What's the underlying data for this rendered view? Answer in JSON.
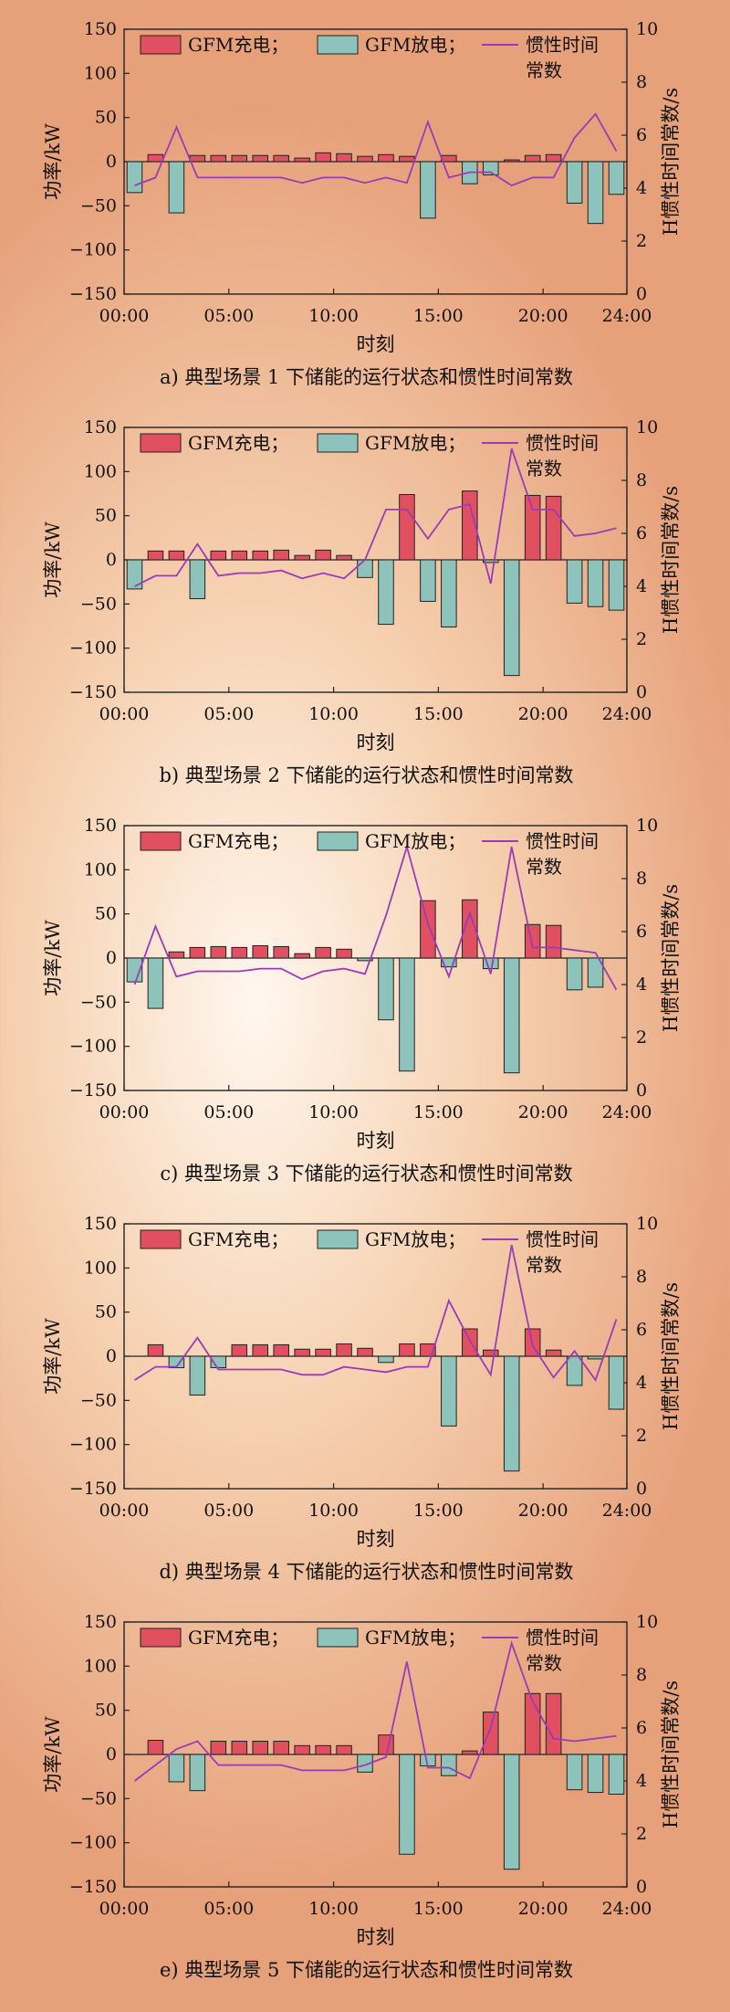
{
  "figure": {
    "legend": {
      "charge": "GFM充电；",
      "discharge": "GFM放电；",
      "inertia_line1": "惯性时间",
      "inertia_line2": "常数"
    },
    "xlabel": "时刻",
    "ylabel_left": "功率/kW",
    "ylabel_right": "H惯性时间常数/s",
    "colors": {
      "charge": "#e05060",
      "discharge": "#8ec3bb",
      "inertia": "#9a3bb8",
      "axis": "#222222"
    }
  },
  "chart_data": [
    {
      "type": "bar",
      "caption": "a) 典型场景 1 下储能的运行状态和惯性时间常数",
      "xlabel": "时刻",
      "ylabel": "功率/kW",
      "y2label": "H惯性时间常数/s",
      "x_ticks": [
        "00:00",
        "05:00",
        "10:00",
        "15:00",
        "20:00",
        "24:00"
      ],
      "y_ticks": [
        "150",
        "100",
        "50",
        "0",
        "−50",
        "−100",
        "−150"
      ],
      "y2_ticks": [
        "10",
        "8",
        "6",
        "4",
        "2",
        "0"
      ],
      "ylim": [
        -150,
        150
      ],
      "y2lim": [
        0,
        10
      ],
      "xlim": [
        0,
        24
      ],
      "hours": [
        1,
        2,
        3,
        4,
        5,
        6,
        7,
        8,
        9,
        10,
        11,
        12,
        13,
        14,
        15,
        16,
        17,
        18,
        19,
        20,
        21,
        22,
        23,
        24
      ],
      "charge": [
        0,
        8,
        0,
        7,
        7,
        7,
        7,
        7,
        4,
        10,
        9,
        6,
        8,
        6,
        0,
        7,
        0,
        0,
        2,
        7,
        8,
        0,
        0,
        0
      ],
      "discharge": [
        -35,
        0,
        -58,
        0,
        0,
        0,
        0,
        0,
        0,
        0,
        0,
        0,
        0,
        0,
        -64,
        0,
        -25,
        -15,
        0,
        0,
        0,
        -47,
        -70,
        -37
      ],
      "inertia": [
        4.1,
        4.4,
        6.3,
        4.4,
        4.4,
        4.4,
        4.4,
        4.4,
        4.2,
        4.4,
        4.4,
        4.2,
        4.4,
        4.2,
        6.5,
        4.4,
        4.6,
        4.6,
        4.1,
        4.4,
        4.4,
        5.9,
        6.8,
        5.4
      ]
    },
    {
      "type": "bar",
      "caption": "b) 典型场景 2 下储能的运行状态和惯性时间常数",
      "xlabel": "时刻",
      "ylabel": "功率/kW",
      "y2label": "H惯性时间常数/s",
      "x_ticks": [
        "00:00",
        "05:00",
        "10:00",
        "15:00",
        "20:00",
        "24:00"
      ],
      "y_ticks": [
        "150",
        "100",
        "50",
        "0",
        "−50",
        "−100",
        "−150"
      ],
      "y2_ticks": [
        "10",
        "8",
        "6",
        "4",
        "2",
        "0"
      ],
      "ylim": [
        -150,
        150
      ],
      "y2lim": [
        0,
        10
      ],
      "xlim": [
        0,
        24
      ],
      "hours": [
        1,
        2,
        3,
        4,
        5,
        6,
        7,
        8,
        9,
        10,
        11,
        12,
        13,
        14,
        15,
        16,
        17,
        18,
        19,
        20,
        21,
        22,
        23,
        24
      ],
      "charge": [
        0,
        10,
        10,
        0,
        10,
        10,
        10,
        11,
        5,
        11,
        5,
        0,
        0,
        74,
        0,
        0,
        78,
        0,
        0,
        73,
        72,
        0,
        0,
        0
      ],
      "discharge": [
        -33,
        0,
        0,
        -44,
        0,
        0,
        0,
        0,
        0,
        0,
        0,
        -20,
        -73,
        0,
        -47,
        -76,
        0,
        -3,
        -131,
        0,
        0,
        -49,
        -53,
        -57
      ],
      "inertia": [
        4.0,
        4.4,
        4.4,
        5.6,
        4.4,
        4.5,
        4.5,
        4.6,
        4.3,
        4.5,
        4.3,
        5.0,
        6.9,
        6.9,
        5.8,
        6.9,
        7.1,
        4.1,
        9.2,
        6.9,
        6.9,
        5.9,
        6.0,
        6.2
      ]
    },
    {
      "type": "bar",
      "caption": "c) 典型场景 3 下储能的运行状态和惯性时间常数",
      "xlabel": "时刻",
      "ylabel": "功率/kW",
      "y2label": "H惯性时间常数/s",
      "x_ticks": [
        "00:00",
        "05:00",
        "10:00",
        "15:00",
        "20:00",
        "24:00"
      ],
      "y_ticks": [
        "150",
        "100",
        "50",
        "0",
        "−50",
        "−100",
        "−150"
      ],
      "y2_ticks": [
        "10",
        "8",
        "6",
        "4",
        "2",
        "0"
      ],
      "ylim": [
        -150,
        150
      ],
      "y2lim": [
        0,
        10
      ],
      "xlim": [
        0,
        24
      ],
      "hours": [
        1,
        2,
        3,
        4,
        5,
        6,
        7,
        8,
        9,
        10,
        11,
        12,
        13,
        14,
        15,
        16,
        17,
        18,
        19,
        20,
        21,
        22,
        23,
        24
      ],
      "charge": [
        0,
        0,
        7,
        12,
        13,
        12,
        14,
        13,
        5,
        12,
        10,
        0,
        0,
        0,
        65,
        0,
        66,
        0,
        0,
        38,
        37,
        0,
        0,
        0
      ],
      "discharge": [
        -27,
        -57,
        0,
        0,
        0,
        0,
        0,
        0,
        0,
        0,
        0,
        -3,
        -70,
        -128,
        0,
        -10,
        0,
        -12,
        -130,
        0,
        0,
        -36,
        -33,
        0
      ],
      "inertia": [
        4.0,
        6.2,
        4.3,
        4.5,
        4.5,
        4.5,
        4.6,
        4.6,
        4.2,
        4.5,
        4.6,
        4.4,
        6.6,
        9.2,
        6.3,
        4.3,
        6.7,
        4.4,
        9.2,
        5.4,
        5.4,
        5.3,
        5.2,
        3.8
      ]
    },
    {
      "type": "bar",
      "caption": "d) 典型场景 4 下储能的运行状态和惯性时间常数",
      "xlabel": "时刻",
      "ylabel": "功率/kW",
      "y2label": "H惯性时间常数/s",
      "x_ticks": [
        "00:00",
        "05:00",
        "10:00",
        "15:00",
        "20:00",
        "24:00"
      ],
      "y_ticks": [
        "150",
        "100",
        "50",
        "0",
        "−50",
        "−100",
        "−150"
      ],
      "y2_ticks": [
        "10",
        "8",
        "6",
        "4",
        "2",
        "0"
      ],
      "ylim": [
        -150,
        150
      ],
      "y2lim": [
        0,
        10
      ],
      "xlim": [
        0,
        24
      ],
      "hours": [
        1,
        2,
        3,
        4,
        5,
        6,
        7,
        8,
        9,
        10,
        11,
        12,
        13,
        14,
        15,
        16,
        17,
        18,
        19,
        20,
        21,
        22,
        23,
        24
      ],
      "charge": [
        0,
        13,
        0,
        0,
        0,
        13,
        13,
        13,
        8,
        8,
        14,
        9,
        0,
        14,
        14,
        0,
        31,
        7,
        0,
        31,
        7,
        0,
        0,
        0
      ],
      "discharge": [
        0,
        0,
        -13,
        -44,
        -13,
        0,
        0,
        0,
        0,
        0,
        0,
        0,
        -7,
        0,
        0,
        -79,
        0,
        0,
        -130,
        0,
        0,
        -33,
        -3,
        -60
      ],
      "inertia": [
        4.1,
        4.6,
        4.6,
        5.7,
        4.5,
        4.5,
        4.5,
        4.5,
        4.3,
        4.3,
        4.6,
        4.5,
        4.4,
        4.6,
        4.6,
        7.1,
        5.6,
        4.3,
        9.2,
        5.4,
        4.2,
        5.2,
        4.1,
        6.4
      ]
    },
    {
      "type": "bar",
      "caption": "e) 典型场景 5 下储能的运行状态和惯性时间常数",
      "xlabel": "时刻",
      "ylabel": "功率/kW",
      "y2label": "H惯性时间常数/s",
      "x_ticks": [
        "00:00",
        "05:00",
        "10:00",
        "15:00",
        "20:00",
        "24:00"
      ],
      "y_ticks": [
        "150",
        "100",
        "50",
        "0",
        "−50",
        "−100",
        "−150"
      ],
      "y2_ticks": [
        "10",
        "8",
        "6",
        "4",
        "2",
        "0"
      ],
      "ylim": [
        -150,
        150
      ],
      "y2lim": [
        0,
        10
      ],
      "xlim": [
        0,
        24
      ],
      "hours": [
        1,
        2,
        3,
        4,
        5,
        6,
        7,
        8,
        9,
        10,
        11,
        12,
        13,
        14,
        15,
        16,
        17,
        18,
        19,
        20,
        21,
        22,
        23,
        24
      ],
      "charge": [
        0,
        16,
        0,
        0,
        15,
        15,
        15,
        15,
        10,
        10,
        10,
        0,
        22,
        0,
        0,
        0,
        4,
        48,
        0,
        69,
        69,
        0,
        0,
        0
      ],
      "discharge": [
        0,
        0,
        -31,
        -41,
        0,
        0,
        0,
        0,
        0,
        0,
        0,
        -20,
        0,
        -113,
        -13,
        -24,
        0,
        0,
        -130,
        0,
        0,
        -40,
        -43,
        -45
      ],
      "inertia": [
        4.0,
        4.6,
        5.2,
        5.5,
        4.6,
        4.6,
        4.6,
        4.6,
        4.4,
        4.4,
        4.4,
        4.6,
        4.9,
        8.5,
        4.5,
        4.5,
        4.1,
        6.0,
        9.2,
        7.0,
        5.6,
        5.5,
        5.6,
        5.7
      ]
    }
  ]
}
